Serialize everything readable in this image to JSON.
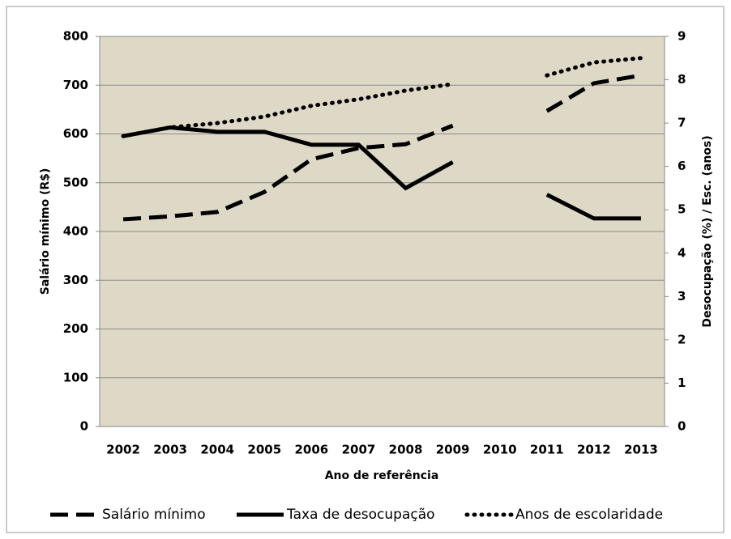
{
  "chart_data": {
    "type": "line",
    "x_label": "Ano de referência",
    "y_label": "Salário mínimo (R$)",
    "y2_label": "Desocupação (%) / Esc. (anos)",
    "categories": [
      "2002",
      "2003",
      "2004",
      "2005",
      "2006",
      "2007",
      "2008",
      "2009",
      "2010",
      "2011",
      "2012",
      "2013"
    ],
    "ylim": [
      0,
      800
    ],
    "yticks": [
      0,
      100,
      200,
      300,
      400,
      500,
      600,
      700,
      800
    ],
    "y2lim": [
      0,
      9
    ],
    "y2ticks": [
      0,
      1,
      2,
      3,
      4,
      5,
      6,
      7,
      8,
      9
    ],
    "grid": true,
    "legend": "bottom",
    "plot_background": "#ded8c6",
    "series": [
      {
        "name": "Salário mínimo",
        "color": "#000000",
        "line_style": "dashed",
        "values": [
          425,
          431,
          440,
          481,
          548,
          571,
          579,
          617,
          null,
          647,
          704,
          720
        ]
      },
      {
        "name": "Taxa de desocupação",
        "color": "#000000",
        "line_style": "solid",
        "axis": "y2",
        "values": [
          6.7,
          6.9,
          6.8,
          6.8,
          6.5,
          6.5,
          5.5,
          6.1,
          null,
          5.35,
          4.8,
          4.8
        ]
      },
      {
        "name": "Anos de escolaridade",
        "color": "#000000",
        "line_style": "dotted",
        "axis": "y2",
        "values": [
          6.7,
          6.9,
          7.0,
          7.15,
          7.4,
          7.55,
          7.75,
          7.9,
          null,
          8.1,
          8.4,
          8.5
        ]
      }
    ]
  }
}
